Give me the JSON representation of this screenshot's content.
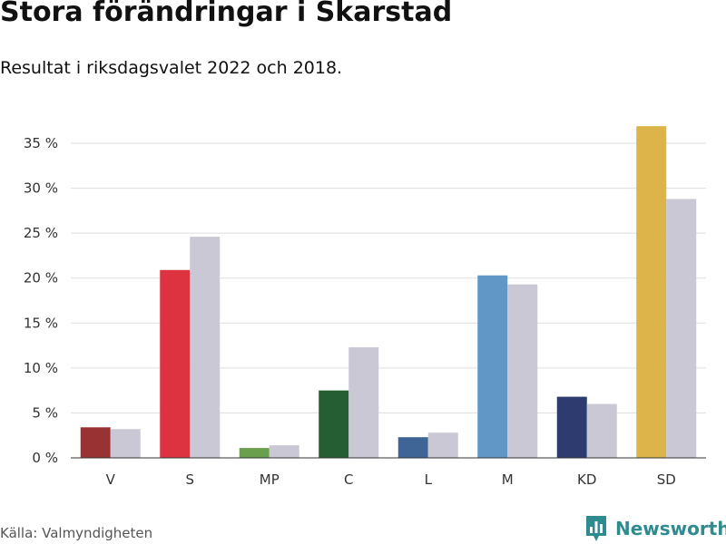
{
  "header": {
    "title": "Stora förändringar i Skarstad",
    "subtitle": "Resultat i riksdagsvalet 2022 och 2018."
  },
  "footer": {
    "source": "Källa: Valmyndigheten",
    "brand": "Newsworthy",
    "brand_color": "#2e8b8f"
  },
  "chart_data": {
    "type": "bar",
    "categories": [
      "V",
      "S",
      "MP",
      "C",
      "L",
      "M",
      "KD",
      "SD"
    ],
    "series": [
      {
        "values": [
          3.4,
          20.9,
          1.1,
          7.5,
          2.3,
          20.3,
          6.8,
          36.9
        ],
        "colors": [
          "#993333",
          "#dd3340",
          "#6a9f4d",
          "#255e33",
          "#3f6596",
          "#6097c6",
          "#2d3b6e",
          "#ddb449"
        ]
      },
      {
        "values": [
          3.2,
          24.6,
          1.4,
          12.3,
          2.8,
          19.3,
          6.0,
          28.8
        ],
        "color": "#c9c8d4"
      }
    ],
    "ylim": [
      0,
      35
    ],
    "y_ticks": [
      0,
      5,
      10,
      15,
      20,
      25,
      30,
      35
    ],
    "y_tick_labels": [
      "0 %",
      "5 %",
      "10 %",
      "15 %",
      "20 %",
      "25 %",
      "30 %",
      "35 %"
    ],
    "grid": true,
    "xlabel": "",
    "ylabel": ""
  }
}
